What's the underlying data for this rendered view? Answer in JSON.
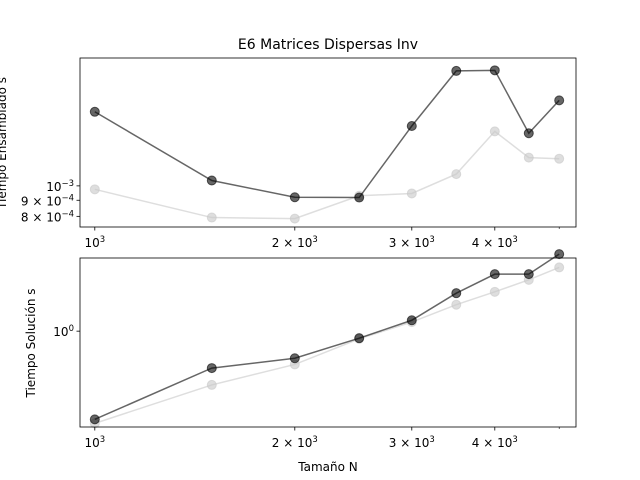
{
  "chart_data": [
    {
      "type": "line",
      "title": "E6 Matrices Dispersas Inv",
      "xlabel": "",
      "ylabel": "Tiempo Ensamblado s",
      "xscale": "log",
      "yscale": "log",
      "xlim": [
        950,
        5300
      ],
      "ylim": [
        0.00074,
        0.00255
      ],
      "x_ticks": [
        {
          "value": 1000,
          "base": "10",
          "exp": "3"
        },
        {
          "value": 2000,
          "base": "2 × 10",
          "exp": "3"
        },
        {
          "value": 3000,
          "base": "3 × 10",
          "exp": "3"
        },
        {
          "value": 4000,
          "base": "4 × 10",
          "exp": "3"
        }
      ],
      "x_minor_ticks": [
        5000
      ],
      "y_ticks": [
        {
          "value": 0.001,
          "base": "10",
          "exp": "−3"
        },
        {
          "value": 0.0009,
          "base": "9 × 10",
          "exp": "−4"
        },
        {
          "value": 0.0008,
          "base": "8 × 10",
          "exp": "−4"
        }
      ],
      "x": [
        1000,
        1500,
        2000,
        2500,
        3000,
        3500,
        4000,
        4500,
        5000
      ],
      "series": [
        {
          "color": "#000000",
          "alpha": 0.6,
          "values": [
            0.00172,
            0.00104,
            0.00092,
            0.000918,
            0.00155,
            0.00232,
            0.00233,
            0.00147,
            0.00187
          ]
        },
        {
          "color": "#c8c8c8",
          "alpha": 0.6,
          "values": [
            0.000975,
            0.000793,
            0.000787,
            0.00093,
            0.000946,
            0.00109,
            0.00149,
            0.00123,
            0.00122
          ]
        }
      ]
    },
    {
      "type": "line",
      "title": "",
      "xlabel": "Tamaño N",
      "ylabel": "Tiempo Solución s",
      "xscale": "log",
      "yscale": "log",
      "xlim": [
        950,
        5300
      ],
      "ylim": [
        0.174,
        3.8
      ],
      "x_ticks": [
        {
          "value": 1000,
          "base": "10",
          "exp": "3"
        },
        {
          "value": 2000,
          "base": "2 × 10",
          "exp": "3"
        },
        {
          "value": 3000,
          "base": "3 × 10",
          "exp": "3"
        },
        {
          "value": 4000,
          "base": "4 × 10",
          "exp": "3"
        }
      ],
      "x_minor_ticks": [
        5000
      ],
      "y_ticks": [
        {
          "value": 1,
          "base": "10",
          "exp": "0"
        }
      ],
      "x": [
        1000,
        1500,
        2000,
        2500,
        3000,
        3500,
        4000,
        4500,
        5000
      ],
      "series": [
        {
          "color": "#000000",
          "alpha": 0.6,
          "values": [
            0.2,
            0.51,
            0.61,
            0.88,
            1.22,
            2.0,
            2.83,
            2.83,
            4.08
          ]
        },
        {
          "color": "#c8c8c8",
          "alpha": 0.6,
          "values": [
            0.186,
            0.375,
            0.545,
            0.87,
            1.18,
            1.62,
            2.05,
            2.55,
            3.2
          ]
        }
      ]
    }
  ]
}
